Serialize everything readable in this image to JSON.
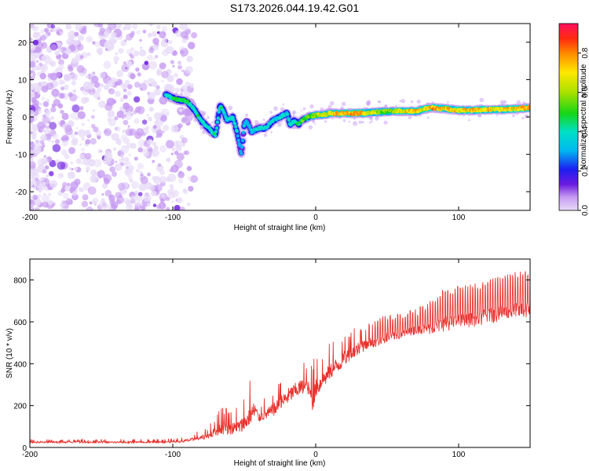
{
  "title": "S173.2026.044.19.42.G01",
  "colors": {
    "snr_line": "#e8332e",
    "axis": "#000000",
    "spec_low": "#c79cf2",
    "spec_mid": "#6a1be0",
    "spec_high": "#e0231f"
  },
  "chart_data": [
    {
      "type": "heatmap",
      "title": "",
      "xlabel": "Height of straight line (km)",
      "ylabel": "Frequency (Hz)",
      "xlim": [
        -200,
        150
      ],
      "ylim": [
        -25,
        25
      ],
      "xticks": [
        -200,
        -100,
        0,
        100
      ],
      "xtick_labels": [
        "-200",
        "-100",
        "0",
        "100"
      ],
      "yticks": [
        20,
        10,
        0,
        -10,
        -20
      ],
      "ytick_labels": [
        "20",
        "10",
        "0",
        "-10",
        "-20"
      ],
      "colorbar": {
        "label": "Normalized spectral amplitude",
        "range": [
          0.0,
          0.95
        ],
        "ticks": [
          0.0,
          0.2,
          0.4,
          0.6,
          0.8
        ],
        "tick_labels": [
          "0.0",
          "0.2",
          "0.4",
          "0.6",
          "0.8"
        ]
      },
      "ridge": {
        "x": [
          -105,
          -100,
          -95,
          -90,
          -85,
          -80,
          -75,
          -70,
          -67,
          -65,
          -62,
          -58,
          -55,
          -52,
          -50,
          -48,
          -45,
          -40,
          -35,
          -30,
          -25,
          -20,
          -18,
          -15,
          -12,
          -10,
          -5,
          0,
          5,
          10,
          20,
          30,
          40,
          50,
          60,
          70,
          75,
          80,
          90,
          100,
          110,
          120,
          130,
          140,
          150
        ],
        "y": [
          6,
          5,
          4.5,
          4.2,
          2,
          -1,
          -3,
          -5,
          3,
          2,
          -1,
          0,
          -4,
          -10,
          -2,
          -1,
          -4,
          -3,
          -3,
          -1,
          0,
          1,
          -2,
          -1,
          -2,
          -1,
          0,
          0.5,
          0.5,
          1,
          1,
          1,
          1.2,
          1.5,
          1.6,
          1.5,
          2,
          2.5,
          2.2,
          1.8,
          1.8,
          2,
          2,
          2.2,
          2.5
        ],
        "amplitude": [
          0.5,
          0.5,
          0.55,
          0.55,
          0.5,
          0.5,
          0.5,
          0.5,
          0.5,
          0.5,
          0.45,
          0.5,
          0.45,
          0.4,
          0.45,
          0.4,
          0.4,
          0.45,
          0.45,
          0.45,
          0.5,
          0.45,
          0.5,
          0.5,
          0.55,
          0.6,
          0.65,
          0.7,
          0.75,
          0.8,
          0.9,
          0.9,
          0.75,
          0.65,
          0.8,
          0.85,
          0.8,
          0.9,
          0.85,
          0.8,
          0.85,
          0.85,
          0.8,
          0.85,
          0.9
        ]
      }
    },
    {
      "type": "line",
      "title": "",
      "xlabel": "Height of straight line (km)",
      "ylabel": "SNR (10 * v/v)",
      "xlim": [
        -200,
        150
      ],
      "ylim": [
        0,
        900
      ],
      "xticks": [
        -200,
        -100,
        0,
        100
      ],
      "xtick_labels": [
        "-200",
        "-100",
        "0",
        "100"
      ],
      "yticks": [
        0,
        200,
        400,
        600,
        800
      ],
      "ytick_labels": [
        "0",
        "200",
        "400",
        "600",
        "800"
      ],
      "envelope": {
        "x": [
          -200,
          -150,
          -110,
          -95,
          -85,
          -75,
          -70,
          -65,
          -60,
          -55,
          -50,
          -45,
          -42,
          -40,
          -35,
          -30,
          -25,
          -20,
          -15,
          -10,
          -5,
          -2,
          0,
          5,
          10,
          20,
          30,
          40,
          50,
          60,
          70,
          80,
          90,
          100,
          110,
          120,
          130,
          140,
          150
        ],
        "base": [
          20,
          20,
          20,
          22,
          30,
          40,
          50,
          55,
          55,
          60,
          70,
          110,
          130,
          120,
          130,
          140,
          170,
          200,
          230,
          250,
          240,
          150,
          230,
          280,
          320,
          380,
          440,
          470,
          500,
          520,
          540,
          540,
          555,
          565,
          575,
          590,
          600,
          610,
          620
        ],
        "peak": [
          40,
          40,
          40,
          45,
          70,
          100,
          160,
          200,
          190,
          210,
          250,
          340,
          340,
          200,
          250,
          290,
          330,
          380,
          400,
          420,
          410,
          420,
          440,
          460,
          500,
          560,
          590,
          600,
          640,
          650,
          660,
          700,
          760,
          770,
          780,
          800,
          820,
          840,
          860
        ]
      }
    }
  ]
}
